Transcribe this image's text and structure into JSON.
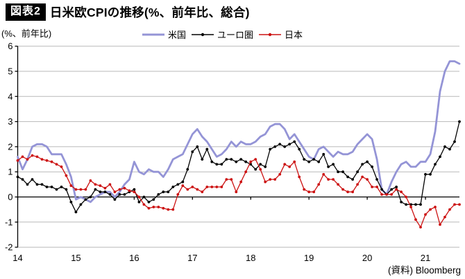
{
  "header": {
    "tag": "図表2",
    "title": "日米欧CPIの推移(%、前年比、総合)"
  },
  "axis_unit_label": "(%、前年比)",
  "source": "(資料) Bloomberg",
  "chart_data": {
    "type": "line",
    "title": "日米欧CPIの推移(%、前年比、総合)",
    "ylabel": "(%、前年比)",
    "ylim": [
      -2,
      6
    ],
    "y_ticks": [
      6,
      5,
      4,
      3,
      2,
      1,
      0,
      -1,
      -2
    ],
    "x_tick_labels": [
      "14",
      "15",
      "16",
      "17",
      "18",
      "19",
      "20",
      "21"
    ],
    "months_per_tick": 12,
    "period": "monthly, Jan 2014 - Aug 2021",
    "grid": "horizontal-only",
    "legend_position": "top",
    "gridline_color": "#b9b9b9",
    "axis_color": "#000000",
    "series": [
      {
        "key": "us",
        "name": "米国",
        "color": "#9494d6",
        "marker": false,
        "line_width": 2.8,
        "values": [
          1.6,
          1.1,
          1.5,
          2.0,
          2.1,
          2.1,
          2.0,
          1.7,
          1.7,
          1.7,
          1.3,
          0.8,
          -0.1,
          0.0,
          -0.1,
          -0.2,
          0.0,
          0.1,
          0.2,
          0.2,
          0.0,
          0.2,
          0.5,
          0.7,
          1.4,
          1.0,
          0.9,
          1.1,
          1.0,
          1.0,
          0.8,
          1.1,
          1.5,
          1.6,
          1.7,
          2.1,
          2.5,
          2.7,
          2.4,
          2.2,
          1.9,
          1.6,
          1.7,
          1.9,
          2.2,
          2.0,
          2.2,
          2.1,
          2.1,
          2.2,
          2.4,
          2.5,
          2.8,
          2.9,
          2.9,
          2.7,
          2.3,
          2.5,
          2.2,
          1.9,
          1.6,
          1.5,
          1.9,
          2.0,
          1.8,
          1.6,
          1.8,
          1.7,
          1.7,
          1.8,
          2.1,
          2.3,
          2.5,
          2.3,
          1.5,
          0.3,
          0.1,
          0.6,
          1.0,
          1.3,
          1.4,
          1.2,
          1.2,
          1.4,
          1.4,
          1.7,
          2.6,
          4.2,
          5.0,
          5.4,
          5.4,
          5.3
        ]
      },
      {
        "key": "euro",
        "name": "ユーロ圏",
        "color": "#000000",
        "marker": true,
        "line_width": 1.3,
        "values": [
          0.8,
          0.7,
          0.5,
          0.7,
          0.5,
          0.5,
          0.4,
          0.4,
          0.3,
          0.4,
          0.3,
          -0.2,
          -0.6,
          -0.3,
          -0.1,
          0.0,
          0.3,
          0.2,
          0.2,
          0.1,
          -0.1,
          0.1,
          0.1,
          0.2,
          0.3,
          -0.2,
          0.0,
          -0.2,
          -0.1,
          0.1,
          0.2,
          0.2,
          0.4,
          0.5,
          0.6,
          1.1,
          1.8,
          2.0,
          1.5,
          1.9,
          1.4,
          1.3,
          1.3,
          1.5,
          1.5,
          1.4,
          1.5,
          1.4,
          1.3,
          1.1,
          1.3,
          1.2,
          1.9,
          2.0,
          2.1,
          2.0,
          2.1,
          2.2,
          1.9,
          1.5,
          1.4,
          1.5,
          1.4,
          1.7,
          1.2,
          1.3,
          1.0,
          1.0,
          0.8,
          0.7,
          1.0,
          1.3,
          1.4,
          1.2,
          0.7,
          0.3,
          0.1,
          0.3,
          0.4,
          -0.2,
          -0.3,
          -0.3,
          -0.3,
          -0.3,
          0.9,
          0.9,
          1.3,
          1.6,
          2.0,
          1.9,
          2.2,
          3.0
        ]
      },
      {
        "key": "japan",
        "name": "日本",
        "color": "#cc1111",
        "marker": true,
        "line_width": 1.3,
        "values": [
          1.45,
          1.6,
          1.5,
          1.65,
          1.6,
          1.5,
          1.45,
          1.4,
          1.3,
          1.2,
          0.85,
          0.45,
          0.3,
          0.3,
          0.3,
          0.65,
          0.5,
          0.45,
          0.35,
          0.5,
          0.2,
          0.3,
          0.35,
          0.25,
          0.2,
          0.0,
          -0.3,
          -0.45,
          -0.4,
          -0.4,
          -0.45,
          -0.5,
          -0.5,
          0.1,
          0.45,
          0.3,
          0.4,
          0.3,
          0.2,
          0.4,
          0.4,
          0.4,
          0.4,
          0.7,
          0.7,
          0.2,
          0.6,
          1.0,
          1.4,
          1.5,
          1.1,
          0.6,
          0.7,
          0.7,
          0.9,
          1.3,
          1.2,
          1.4,
          0.8,
          0.3,
          0.2,
          0.2,
          0.5,
          0.9,
          0.7,
          0.7,
          0.5,
          0.3,
          0.2,
          0.2,
          0.5,
          0.8,
          0.7,
          0.4,
          0.4,
          0.1,
          0.1,
          0.1,
          0.3,
          0.2,
          0.0,
          -0.4,
          -0.9,
          -1.2,
          -0.7,
          -0.5,
          -0.4,
          -1.1,
          -0.8,
          -0.5,
          -0.3,
          -0.3
        ]
      }
    ]
  }
}
